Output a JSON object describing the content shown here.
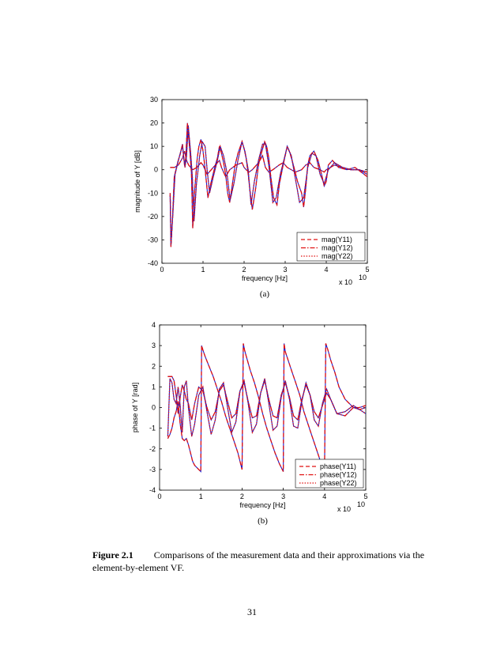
{
  "figure": {
    "label": "Figure 2.1",
    "caption": "Comparisons of the measurement data and their approximations via the element-by-element VF."
  },
  "page_number": "31",
  "chart_data": [
    {
      "type": "line",
      "sub_caption": "(a)",
      "xlabel": "frequency [Hz]",
      "ylabel": "magnitude of Y [dB]",
      "x_multiplier_base": "x 10",
      "x_multiplier_exp": "10",
      "xlim": [
        0,
        5
      ],
      "ylim": [
        -40,
        30
      ],
      "xticks": [
        0,
        1,
        2,
        3,
        4,
        5
      ],
      "yticks": [
        -40,
        -30,
        -20,
        -10,
        0,
        10,
        20,
        30
      ],
      "legend": {
        "position": "bottom-right",
        "entries": [
          "mag(Y11)",
          "mag(Y12)",
          "mag(Y22)"
        ]
      },
      "colors": {
        "approximation": "#e01010",
        "measurement": "#1a1acc"
      },
      "series": [
        {
          "name": "mag(Y11)",
          "style": "dashed",
          "x": [
            0.2,
            0.22,
            0.26,
            0.3,
            0.38,
            0.45,
            0.5,
            0.55,
            0.58,
            0.62,
            0.68,
            0.72,
            0.75,
            0.8,
            0.86,
            0.9,
            0.95,
            1.0,
            1.04,
            1.08,
            1.12,
            1.2,
            1.3,
            1.35,
            1.4,
            1.45,
            1.5,
            1.55,
            1.6,
            1.65,
            1.7,
            1.78,
            1.85,
            1.95,
            2.0,
            2.05,
            2.1,
            2.15,
            2.2,
            2.28,
            2.35,
            2.42,
            2.5,
            2.55,
            2.6,
            2.65,
            2.72,
            2.8,
            2.86,
            2.95,
            3.0,
            3.05,
            3.12,
            3.2,
            3.3,
            3.4,
            3.45,
            3.5,
            3.55,
            3.6,
            3.7,
            3.8,
            3.9,
            3.95,
            4.0,
            4.05,
            4.15,
            4.3,
            4.5,
            4.7,
            4.85,
            5.0
          ],
          "y": [
            -10,
            -33,
            -20,
            -3,
            3,
            7,
            11,
            2,
            5,
            20,
            8,
            -2,
            -25,
            -8,
            5,
            10,
            13,
            8,
            2,
            -5,
            -12,
            -5,
            2,
            5,
            10,
            7,
            3,
            -2,
            -10,
            -14,
            -8,
            2,
            7,
            12,
            9,
            5,
            -2,
            -10,
            -17,
            -8,
            2,
            7,
            12,
            10,
            5,
            -3,
            -12,
            -15,
            -6,
            2,
            6,
            10,
            7,
            2,
            -5,
            -10,
            -16,
            -8,
            2,
            6,
            8,
            4,
            -3,
            -7,
            -5,
            2,
            4,
            1,
            0,
            1,
            -1,
            -3
          ]
        },
        {
          "name": "mag(Y12)",
          "style": "dashdot",
          "x": [
            0.2,
            0.25,
            0.3,
            0.4,
            0.5,
            0.55,
            0.6,
            0.65,
            0.75,
            0.85,
            0.95,
            1.0,
            1.05,
            1.1,
            1.2,
            1.3,
            1.4,
            1.45,
            1.55,
            1.65,
            1.8,
            1.95,
            2.0,
            2.05,
            2.12,
            2.2,
            2.35,
            2.45,
            2.52,
            2.6,
            2.7,
            2.85,
            2.95,
            3.05,
            3.15,
            3.25,
            3.4,
            3.5,
            3.6,
            3.7,
            3.85,
            3.95,
            4.0,
            4.1,
            4.2,
            4.4,
            4.6,
            4.8,
            5.0
          ],
          "y": [
            1,
            1,
            1,
            2,
            5,
            8,
            4,
            2,
            0,
            1,
            3,
            2,
            0,
            -2,
            0,
            2,
            4,
            1,
            -3,
            0,
            2,
            3,
            1,
            0,
            -1,
            0,
            3,
            6,
            1,
            -1,
            0,
            2,
            3,
            1,
            0,
            -1,
            0,
            2,
            3,
            1,
            0,
            -1,
            0,
            1,
            2,
            1,
            0,
            0,
            -1
          ]
        },
        {
          "name": "mag(Y22)",
          "style": "dotted",
          "x": [
            0.2,
            0.22,
            0.27,
            0.32,
            0.4,
            0.46,
            0.5,
            0.56,
            0.6,
            0.64,
            0.7,
            0.74,
            0.78,
            0.84,
            0.92,
            0.98,
            1.05,
            1.1,
            1.16,
            1.25,
            1.35,
            1.42,
            1.5,
            1.58,
            1.66,
            1.75,
            1.85,
            1.95,
            2.02,
            2.1,
            2.17,
            2.25,
            2.35,
            2.45,
            2.52,
            2.6,
            2.7,
            2.78,
            2.88,
            2.98,
            3.05,
            3.15,
            3.25,
            3.35,
            3.45,
            3.55,
            3.65,
            3.75,
            3.85,
            3.95,
            4.05,
            4.2,
            4.4,
            4.6,
            4.8,
            5.0
          ],
          "y": [
            -11,
            -32,
            -18,
            -2,
            4,
            8,
            10,
            1,
            6,
            19,
            7,
            -3,
            -22,
            -6,
            6,
            12,
            10,
            0,
            -10,
            -3,
            4,
            10,
            6,
            -1,
            -13,
            -6,
            4,
            12,
            8,
            0,
            -15,
            -5,
            4,
            11,
            11,
            2,
            -14,
            -12,
            -2,
            5,
            10,
            6,
            -4,
            -14,
            -12,
            1,
            7,
            6,
            -2,
            -6,
            0,
            3,
            1,
            0,
            0,
            -2
          ]
        }
      ]
    },
    {
      "type": "line",
      "sub_caption": "(b)",
      "xlabel": "frequency [Hz]",
      "ylabel": "phase of Y [rad]",
      "x_multiplier_base": "x 10",
      "x_multiplier_exp": "10",
      "xlim": [
        0,
        5
      ],
      "ylim": [
        -4,
        4
      ],
      "xticks": [
        0,
        1,
        2,
        3,
        4,
        5
      ],
      "yticks": [
        -4,
        -3,
        -2,
        -1,
        0,
        1,
        2,
        3,
        4
      ],
      "legend": {
        "position": "bottom-right",
        "entries": [
          "phase(Y11)",
          "phase(Y12)",
          "phase(Y22)"
        ]
      },
      "colors": {
        "approximation": "#e01010",
        "measurement": "#1a1acc"
      },
      "series": [
        {
          "name": "phase(Y11)",
          "style": "dashed",
          "x": [
            0.2,
            0.25,
            0.3,
            0.35,
            0.4,
            0.45,
            0.5,
            0.55,
            0.6,
            0.65,
            0.7,
            0.75,
            0.8,
            0.85,
            0.9,
            0.95,
            1.0,
            1.02,
            1.05,
            1.1,
            1.2,
            1.3,
            1.4,
            1.5,
            1.6,
            1.7,
            1.8,
            1.9,
            2.0,
            2.03,
            2.06,
            2.1,
            2.2,
            2.3,
            2.4,
            2.5,
            2.6,
            2.7,
            2.8,
            2.9,
            3.0,
            3.02,
            3.05,
            3.1,
            3.2,
            3.3,
            3.4,
            3.5,
            3.6,
            3.7,
            3.8,
            3.9,
            4.0,
            4.03,
            4.08,
            4.15,
            4.25,
            4.35,
            4.5,
            4.7,
            4.85,
            5.0
          ],
          "y": [
            -1.5,
            -1.3,
            -1.0,
            -0.5,
            -0.2,
            0.3,
            -0.8,
            -1.5,
            -1.6,
            -1.5,
            -1.8,
            -2.2,
            -2.6,
            -2.8,
            -2.9,
            -3.0,
            -3.1,
            3.0,
            2.8,
            2.5,
            2.0,
            1.5,
            0.9,
            0.3,
            -0.4,
            -1.0,
            -1.6,
            -2.2,
            -3.0,
            3.1,
            2.8,
            2.5,
            1.8,
            1.2,
            0.5,
            -0.3,
            -1.0,
            -1.6,
            -2.2,
            -2.7,
            -3.1,
            3.1,
            2.7,
            2.4,
            1.8,
            1.2,
            0.6,
            -0.2,
            -0.8,
            -1.4,
            -2.0,
            -2.6,
            -3.1,
            3.1,
            2.8,
            2.3,
            1.7,
            1.0,
            0.4,
            0.0,
            0.0,
            0.1
          ]
        },
        {
          "name": "phase(Y12)",
          "style": "dashdot",
          "x": [
            0.2,
            0.3,
            0.35,
            0.4,
            0.45,
            0.5,
            0.55,
            0.6,
            0.65,
            0.7,
            0.78,
            0.85,
            0.95,
            1.05,
            1.15,
            1.25,
            1.35,
            1.45,
            1.55,
            1.65,
            1.75,
            1.85,
            1.95,
            2.05,
            2.15,
            2.25,
            2.35,
            2.45,
            2.55,
            2.65,
            2.75,
            2.85,
            2.95,
            3.05,
            3.15,
            3.25,
            3.35,
            3.45,
            3.55,
            3.65,
            3.75,
            3.85,
            3.95,
            4.05,
            4.15,
            4.3,
            4.5,
            4.7,
            4.85,
            5.0
          ],
          "y": [
            1.5,
            1.5,
            1.3,
            0.6,
            -0.3,
            0.5,
            1.1,
            0.8,
            0.4,
            0.2,
            -0.6,
            0.2,
            1.0,
            0.8,
            0.0,
            -0.6,
            -0.2,
            0.8,
            1.1,
            0.3,
            -0.5,
            -0.3,
            0.8,
            1.2,
            0.3,
            -0.5,
            -0.4,
            0.7,
            1.3,
            0.4,
            -0.4,
            -0.5,
            0.6,
            1.2,
            0.5,
            -0.4,
            -0.6,
            0.4,
            1.1,
            0.6,
            -0.2,
            -0.5,
            0.1,
            0.7,
            0.4,
            -0.3,
            -0.4,
            0.0,
            -0.1,
            0.0
          ]
        },
        {
          "name": "phase(Y22)",
          "style": "dotted",
          "x": [
            0.2,
            0.25,
            0.3,
            0.35,
            0.4,
            0.45,
            0.5,
            0.55,
            0.6,
            0.65,
            0.7,
            0.78,
            0.85,
            0.95,
            1.05,
            1.15,
            1.25,
            1.35,
            1.45,
            1.55,
            1.65,
            1.75,
            1.85,
            1.95,
            2.05,
            2.15,
            2.25,
            2.35,
            2.45,
            2.55,
            2.65,
            2.75,
            2.85,
            2.95,
            3.05,
            3.15,
            3.25,
            3.35,
            3.45,
            3.55,
            3.65,
            3.75,
            3.85,
            3.95,
            4.05,
            4.15,
            4.3,
            4.5,
            4.7,
            4.85,
            5.0
          ],
          "y": [
            -1.4,
            1.4,
            1.2,
            0.4,
            0.2,
            1.0,
            0.1,
            -1.2,
            1.0,
            1.3,
            0.0,
            -1.4,
            -0.8,
            0.6,
            1.0,
            -0.2,
            -1.3,
            -0.6,
            0.9,
            1.2,
            0.0,
            -1.2,
            -0.7,
            0.8,
            1.3,
            0.2,
            -1.2,
            -0.8,
            0.7,
            1.4,
            0.2,
            -1.1,
            -0.9,
            0.5,
            1.3,
            0.4,
            -0.9,
            -1.0,
            0.3,
            1.2,
            0.6,
            -0.6,
            -0.9,
            0.2,
            0.9,
            0.4,
            -0.3,
            -0.2,
            0.1,
            -0.1,
            -0.3
          ]
        }
      ]
    }
  ]
}
